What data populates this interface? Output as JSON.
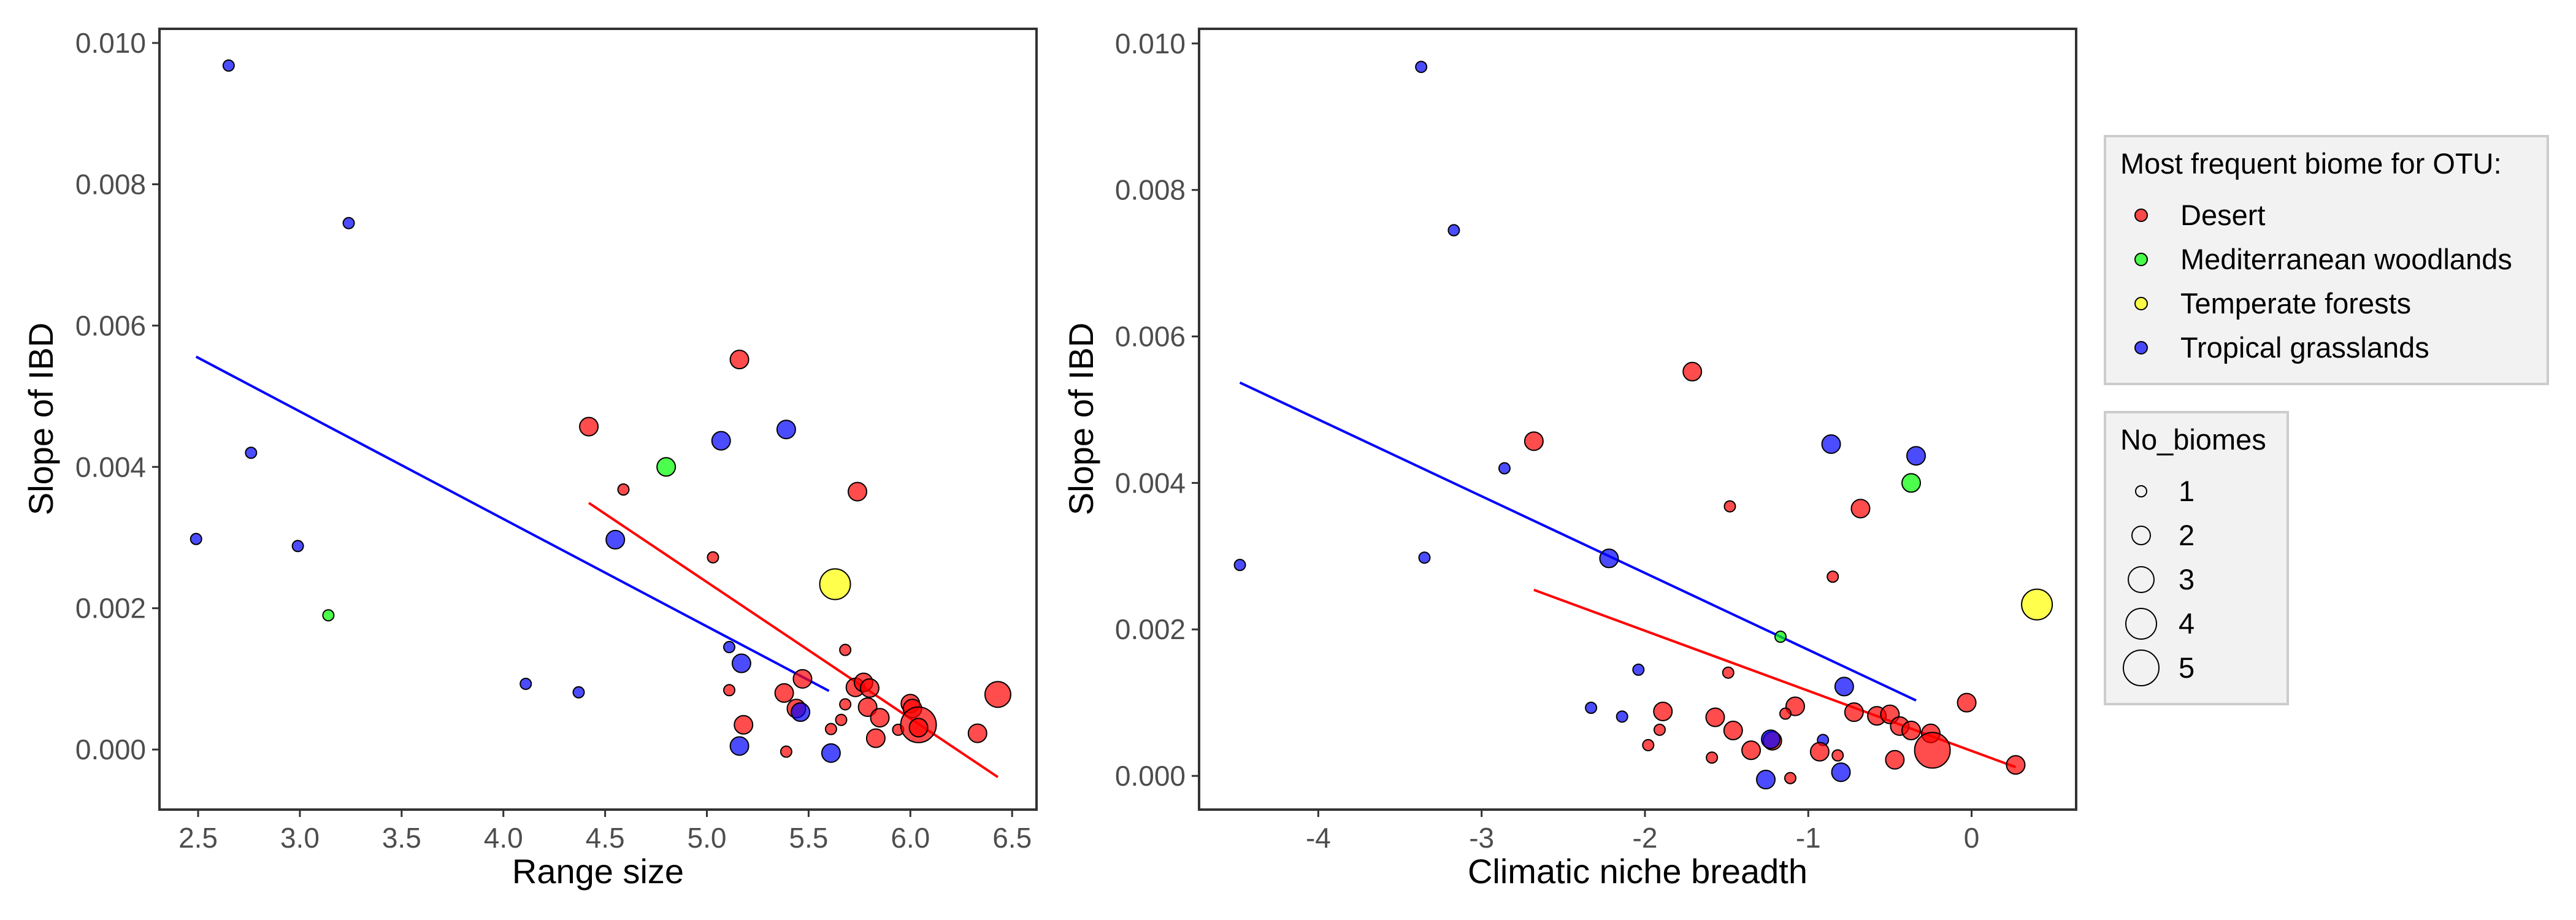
{
  "colors": {
    "Desert": "#ff0000",
    "Mediterranean woodlands": "#00ff00",
    "Temperate forests": "#ffff00",
    "Tropical grasslands": "#0000ff",
    "point_alpha": 0.7
  },
  "legend_biome": {
    "title": "Most frequent biome for OTU:",
    "items": [
      "Desert",
      "Mediterranean woodlands",
      "Temperate forests",
      "Tropical grasslands"
    ]
  },
  "legend_size": {
    "title": "No_biomes",
    "items": [
      "1",
      "2",
      "3",
      "4",
      "5"
    ]
  },
  "chart_data": [
    {
      "type": "scatter",
      "xlabel": "Range size",
      "ylabel": "Slope of IBD",
      "xlim": [
        2.31,
        6.62
      ],
      "ylim": [
        -0.00085,
        0.0102
      ],
      "xticks": [
        2.5,
        3.0,
        3.5,
        4.0,
        4.5,
        5.0,
        5.5,
        6.0,
        6.5
      ],
      "xtick_labels": [
        "2.5",
        "3.0",
        "3.5",
        "4.0",
        "4.5",
        "5.0",
        "5.5",
        "6.0",
        "6.5"
      ],
      "yticks": [
        0,
        0.002,
        0.004,
        0.006,
        0.008,
        0.01
      ],
      "ytick_labels": [
        "0.000",
        "0.002",
        "0.004",
        "0.006",
        "0.008",
        "0.010"
      ],
      "grid": false,
      "points": [
        {
          "x": 2.65,
          "y": 0.00968,
          "biome": "Tropical grasslands",
          "n": 1
        },
        {
          "x": 3.24,
          "y": 0.00745,
          "biome": "Tropical grasslands",
          "n": 1
        },
        {
          "x": 2.76,
          "y": 0.0042,
          "biome": "Tropical grasslands",
          "n": 1
        },
        {
          "x": 2.49,
          "y": 0.00298,
          "biome": "Tropical grasslands",
          "n": 1
        },
        {
          "x": 2.99,
          "y": 0.00288,
          "biome": "Tropical grasslands",
          "n": 1
        },
        {
          "x": 3.14,
          "y": 0.0019,
          "biome": "Mediterranean woodlands",
          "n": 1
        },
        {
          "x": 4.11,
          "y": 0.00093,
          "biome": "Tropical grasslands",
          "n": 1
        },
        {
          "x": 4.37,
          "y": 0.00081,
          "biome": "Tropical grasslands",
          "n": 1
        },
        {
          "x": 4.42,
          "y": 0.00457,
          "biome": "Desert",
          "n": 2
        },
        {
          "x": 4.59,
          "y": 0.00368,
          "biome": "Desert",
          "n": 1
        },
        {
          "x": 4.55,
          "y": 0.00297,
          "biome": "Tropical grasslands",
          "n": 2
        },
        {
          "x": 4.8,
          "y": 0.004,
          "biome": "Mediterranean woodlands",
          "n": 2
        },
        {
          "x": 5.03,
          "y": 0.00272,
          "biome": "Desert",
          "n": 1
        },
        {
          "x": 5.07,
          "y": 0.00437,
          "biome": "Tropical grasslands",
          "n": 2
        },
        {
          "x": 5.16,
          "y": 0.00552,
          "biome": "Desert",
          "n": 2
        },
        {
          "x": 5.39,
          "y": 0.00453,
          "biome": "Tropical grasslands",
          "n": 2
        },
        {
          "x": 5.63,
          "y": 0.00234,
          "biome": "Temperate forests",
          "n": 4
        },
        {
          "x": 5.74,
          "y": 0.00365,
          "biome": "Desert",
          "n": 2
        },
        {
          "x": 5.11,
          "y": 0.00145,
          "biome": "Tropical grasslands",
          "n": 1
        },
        {
          "x": 5.17,
          "y": 0.00122,
          "biome": "Tropical grasslands",
          "n": 2
        },
        {
          "x": 5.68,
          "y": 0.00141,
          "biome": "Desert",
          "n": 1
        },
        {
          "x": 5.11,
          "y": 0.00084,
          "biome": "Desert",
          "n": 1
        },
        {
          "x": 5.38,
          "y": 0.0008,
          "biome": "Desert",
          "n": 2
        },
        {
          "x": 5.47,
          "y": 0.001,
          "biome": "Desert",
          "n": 2
        },
        {
          "x": 5.73,
          "y": 0.00088,
          "biome": "Desert",
          "n": 2
        },
        {
          "x": 5.77,
          "y": 0.00095,
          "biome": "Desert",
          "n": 2
        },
        {
          "x": 5.8,
          "y": 0.00087,
          "biome": "Desert",
          "n": 2
        },
        {
          "x": 5.44,
          "y": 0.00058,
          "biome": "Desert",
          "n": 2
        },
        {
          "x": 5.46,
          "y": 0.00053,
          "biome": "Tropical grasslands",
          "n": 2
        },
        {
          "x": 5.68,
          "y": 0.00064,
          "biome": "Desert",
          "n": 1
        },
        {
          "x": 5.79,
          "y": 0.0006,
          "biome": "Desert",
          "n": 2
        },
        {
          "x": 5.18,
          "y": 0.00035,
          "biome": "Desert",
          "n": 2
        },
        {
          "x": 5.61,
          "y": 0.00029,
          "biome": "Desert",
          "n": 1
        },
        {
          "x": 5.66,
          "y": 0.00042,
          "biome": "Desert",
          "n": 1
        },
        {
          "x": 5.85,
          "y": 0.00045,
          "biome": "Desert",
          "n": 2
        },
        {
          "x": 5.94,
          "y": 0.00028,
          "biome": "Desert",
          "n": 1
        },
        {
          "x": 6.0,
          "y": 0.00065,
          "biome": "Desert",
          "n": 2
        },
        {
          "x": 6.01,
          "y": 0.00058,
          "biome": "Desert",
          "n": 2
        },
        {
          "x": 6.04,
          "y": 0.00035,
          "biome": "Desert",
          "n": 5
        },
        {
          "x": 5.83,
          "y": 0.00016,
          "biome": "Desert",
          "n": 2
        },
        {
          "x": 6.04,
          "y": 0.00031,
          "biome": "Desert",
          "n": 2
        },
        {
          "x": 6.33,
          "y": 0.00023,
          "biome": "Desert",
          "n": 2
        },
        {
          "x": 6.43,
          "y": 0.00078,
          "biome": "Desert",
          "n": 3
        },
        {
          "x": 5.16,
          "y": 5e-05,
          "biome": "Tropical grasslands",
          "n": 2
        },
        {
          "x": 5.39,
          "y": -3e-05,
          "biome": "Desert",
          "n": 1
        },
        {
          "x": 5.61,
          "y": -5e-05,
          "biome": "Tropical grasslands",
          "n": 2
        }
      ],
      "trend_lines": [
        {
          "biome": "Tropical grasslands",
          "x": [
            2.49,
            5.6
          ],
          "y": [
            0.00556,
            0.00083
          ]
        },
        {
          "biome": "Desert",
          "x": [
            4.42,
            6.43
          ],
          "y": [
            0.00349,
            -0.00039
          ]
        }
      ]
    },
    {
      "type": "scatter",
      "xlabel": "Climatic niche breadth",
      "ylabel": "Slope of IBD",
      "xlim": [
        -4.73,
        0.64
      ],
      "ylim": [
        -0.00046,
        0.0102
      ],
      "xticks": [
        -4,
        -3,
        -2,
        -1,
        0
      ],
      "xtick_labels": [
        "-4",
        "-3",
        "-2",
        "-1",
        "0"
      ],
      "yticks": [
        0,
        0.002,
        0.004,
        0.006,
        0.008,
        0.01
      ],
      "ytick_labels": [
        "0.000",
        "0.002",
        "0.004",
        "0.006",
        "0.008",
        "0.010"
      ],
      "grid": false,
      "points": [
        {
          "x": -3.37,
          "y": 0.00968,
          "biome": "Tropical grasslands",
          "n": 1
        },
        {
          "x": -3.17,
          "y": 0.00745,
          "biome": "Tropical grasslands",
          "n": 1
        },
        {
          "x": -2.86,
          "y": 0.0042,
          "biome": "Tropical grasslands",
          "n": 1
        },
        {
          "x": -3.35,
          "y": 0.00298,
          "biome": "Tropical grasslands",
          "n": 1
        },
        {
          "x": -4.48,
          "y": 0.00288,
          "biome": "Tropical grasslands",
          "n": 1
        },
        {
          "x": -1.17,
          "y": 0.0019,
          "biome": "Mediterranean woodlands",
          "n": 1
        },
        {
          "x": -2.33,
          "y": 0.00093,
          "biome": "Tropical grasslands",
          "n": 1
        },
        {
          "x": -2.14,
          "y": 0.00081,
          "biome": "Tropical grasslands",
          "n": 1
        },
        {
          "x": -2.68,
          "y": 0.00457,
          "biome": "Desert",
          "n": 2
        },
        {
          "x": -1.48,
          "y": 0.00368,
          "biome": "Desert",
          "n": 1
        },
        {
          "x": -2.22,
          "y": 0.00297,
          "biome": "Tropical grasslands",
          "n": 2
        },
        {
          "x": -0.37,
          "y": 0.004,
          "biome": "Mediterranean woodlands",
          "n": 2
        },
        {
          "x": -0.85,
          "y": 0.00272,
          "biome": "Desert",
          "n": 1
        },
        {
          "x": -0.34,
          "y": 0.00437,
          "biome": "Tropical grasslands",
          "n": 2
        },
        {
          "x": -1.71,
          "y": 0.00552,
          "biome": "Desert",
          "n": 2
        },
        {
          "x": -0.86,
          "y": 0.00453,
          "biome": "Tropical grasslands",
          "n": 2
        },
        {
          "x": 0.4,
          "y": 0.00234,
          "biome": "Temperate forests",
          "n": 4
        },
        {
          "x": -0.68,
          "y": 0.00365,
          "biome": "Desert",
          "n": 2
        },
        {
          "x": -2.04,
          "y": 0.00145,
          "biome": "Tropical grasslands",
          "n": 1
        },
        {
          "x": -0.78,
          "y": 0.00122,
          "biome": "Tropical grasslands",
          "n": 2
        },
        {
          "x": -1.49,
          "y": 0.00141,
          "biome": "Desert",
          "n": 1
        },
        {
          "x": -1.91,
          "y": 0.00063,
          "biome": "Desert",
          "n": 1
        },
        {
          "x": -1.89,
          "y": 0.00088,
          "biome": "Desert",
          "n": 2
        },
        {
          "x": -1.57,
          "y": 0.0008,
          "biome": "Desert",
          "n": 2
        },
        {
          "x": -1.46,
          "y": 0.00062,
          "biome": "Desert",
          "n": 2
        },
        {
          "x": -1.08,
          "y": 0.00095,
          "biome": "Desert",
          "n": 2
        },
        {
          "x": -0.72,
          "y": 0.00087,
          "biome": "Desert",
          "n": 2
        },
        {
          "x": -0.58,
          "y": 0.00082,
          "biome": "Desert",
          "n": 2
        },
        {
          "x": -0.5,
          "y": 0.00084,
          "biome": "Desert",
          "n": 2
        },
        {
          "x": -0.44,
          "y": 0.00068,
          "biome": "Desert",
          "n": 2
        },
        {
          "x": -0.37,
          "y": 0.00062,
          "biome": "Desert",
          "n": 2
        },
        {
          "x": -0.25,
          "y": 0.00058,
          "biome": "Desert",
          "n": 2
        },
        {
          "x": -0.03,
          "y": 0.001,
          "biome": "Desert",
          "n": 2
        },
        {
          "x": -1.14,
          "y": 0.00085,
          "biome": "Desert",
          "n": 1
        },
        {
          "x": -1.35,
          "y": 0.00035,
          "biome": "Desert",
          "n": 2
        },
        {
          "x": -1.22,
          "y": 0.00048,
          "biome": "Desert",
          "n": 2
        },
        {
          "x": -1.23,
          "y": 0.0005,
          "biome": "Tropical grasslands",
          "n": 2
        },
        {
          "x": -0.91,
          "y": 0.00049,
          "biome": "Tropical grasslands",
          "n": 1
        },
        {
          "x": -1.98,
          "y": 0.00042,
          "biome": "Desert",
          "n": 1
        },
        {
          "x": -1.59,
          "y": 0.00025,
          "biome": "Desert",
          "n": 1
        },
        {
          "x": -0.93,
          "y": 0.00033,
          "biome": "Desert",
          "n": 2
        },
        {
          "x": -0.82,
          "y": 0.00028,
          "biome": "Desert",
          "n": 1
        },
        {
          "x": -0.47,
          "y": 0.00022,
          "biome": "Desert",
          "n": 2
        },
        {
          "x": -0.24,
          "y": 0.00035,
          "biome": "Desert",
          "n": 5
        },
        {
          "x": 0.27,
          "y": 0.00015,
          "biome": "Desert",
          "n": 2
        },
        {
          "x": -1.11,
          "y": -3e-05,
          "biome": "Desert",
          "n": 1
        },
        {
          "x": -1.26,
          "y": -5e-05,
          "biome": "Tropical grasslands",
          "n": 2
        },
        {
          "x": -0.8,
          "y": 5e-05,
          "biome": "Tropical grasslands",
          "n": 2
        }
      ],
      "trend_lines": [
        {
          "biome": "Tropical grasslands",
          "x": [
            -4.48,
            -0.34
          ],
          "y": [
            0.00537,
            0.00103
          ]
        },
        {
          "biome": "Desert",
          "x": [
            -2.68,
            0.27
          ],
          "y": [
            0.00254,
            0.00012
          ]
        }
      ]
    }
  ]
}
